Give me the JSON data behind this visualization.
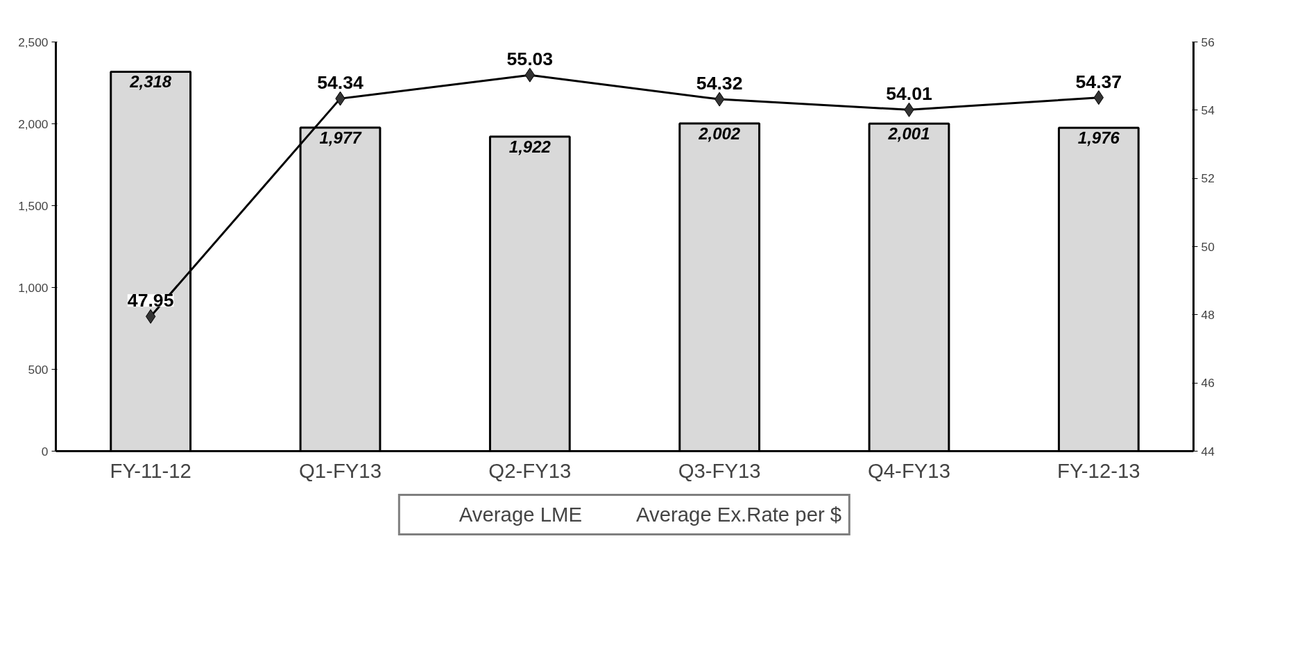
{
  "chart_data": {
    "type": "bar",
    "categories": [
      "FY-11-12",
      "Q1-FY13",
      "Q2-FY13",
      "Q3-FY13",
      "Q4-FY13",
      "FY-12-13"
    ],
    "series": [
      {
        "name": "Average LME",
        "color": "#d9d9d9",
        "values": [
          2318,
          1977,
          1922,
          2002,
          2001,
          1976
        ],
        "value_labels": [
          "2,318",
          "1,977",
          "1,922",
          "2,002",
          "2,001",
          "1,976"
        ]
      },
      {
        "name": "Average Ex.Rate per $",
        "type": "line",
        "axis": "y2",
        "color": "#000000",
        "marker": "diamond",
        "values": [
          47.95,
          54.34,
          55.03,
          54.32,
          54.01,
          54.37
        ],
        "value_labels": [
          "47.95",
          "54.34",
          "55.03",
          "54.32",
          "54.01",
          "54.37"
        ]
      }
    ],
    "ylim": [
      0,
      2500
    ],
    "yticks": [
      0,
      {
        "value": 500,
        "label": "500"
      },
      {
        "value": 1000,
        "label": "1,000"
      },
      {
        "value": 1500,
        "label": "1,500"
      },
      {
        "value": 2000,
        "label": "2,000"
      },
      {
        "value": 2500,
        "label": "2,500"
      }
    ],
    "y2lim": [
      44,
      56
    ],
    "y2ticks": [
      44,
      46,
      48,
      50,
      52,
      54,
      56
    ],
    "grid": false,
    "legend": "bottom"
  }
}
